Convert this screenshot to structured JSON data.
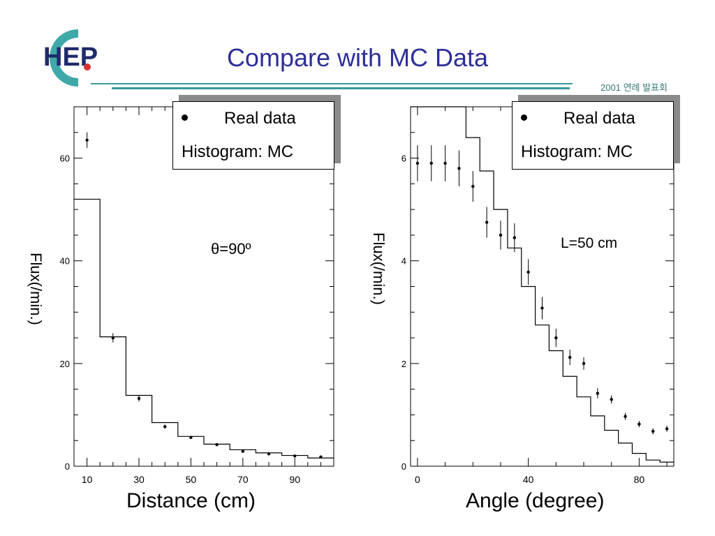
{
  "header": {
    "title": "Compare with  MC Data",
    "subtitle": "2001 연례 발표회",
    "logo_text": "HEP"
  },
  "legend": {
    "real_label": "Real data",
    "mc_label": "Histogram: MC"
  },
  "chart_data": [
    {
      "type": "scatter",
      "title": "",
      "xlabel": "Distance (cm)",
      "ylabel": "Flux(/min.)",
      "annotation": "θ=90º",
      "xlim": [
        5,
        105
      ],
      "ylim": [
        0,
        70
      ],
      "xticks": [
        10,
        30,
        50,
        70,
        90
      ],
      "yticks": [
        0,
        20,
        40,
        60
      ],
      "grid": false,
      "legend_position": "top-right",
      "series": [
        {
          "name": "Real data",
          "type": "points",
          "x": [
            10,
            20,
            30,
            40,
            50,
            60,
            70,
            80,
            90,
            100
          ],
          "y": [
            63.5,
            25.0,
            13.2,
            7.7,
            5.6,
            4.2,
            2.9,
            2.4,
            2.0,
            1.8
          ],
          "err": [
            1.5,
            0.9,
            0.6,
            0.4,
            0.3,
            0.3,
            0.2,
            0.2,
            0.2,
            0.2
          ]
        },
        {
          "name": "Histogram: MC",
          "type": "step",
          "edges": [
            5,
            15,
            25,
            35,
            45,
            55,
            65,
            75,
            85,
            95,
            105
          ],
          "values": [
            52,
            25.2,
            13.8,
            8.5,
            5.8,
            4.3,
            3.2,
            2.6,
            2.1,
            1.6
          ]
        }
      ]
    },
    {
      "type": "scatter",
      "title": "",
      "xlabel": "Angle (degree)",
      "ylabel": "Flux(/min.)",
      "annotation": "L=50 cm",
      "xlim": [
        -2.5,
        92.5
      ],
      "ylim": [
        0,
        7
      ],
      "xticks": [
        0,
        40,
        80
      ],
      "yticks": [
        0,
        2,
        4,
        6
      ],
      "grid": false,
      "legend_position": "top-right",
      "series": [
        {
          "name": "Real data",
          "type": "points",
          "x": [
            0,
            5,
            10,
            15,
            20,
            25,
            30,
            35,
            40,
            45,
            50,
            55,
            60,
            65,
            70,
            75,
            80,
            85,
            90
          ],
          "y": [
            5.9,
            5.9,
            5.9,
            5.8,
            5.45,
            4.75,
            4.5,
            4.45,
            3.78,
            3.08,
            2.5,
            2.12,
            2.0,
            1.42,
            1.3,
            0.97,
            0.82,
            0.68,
            0.73
          ],
          "err": [
            0.35,
            0.35,
            0.35,
            0.35,
            0.3,
            0.3,
            0.28,
            0.28,
            0.25,
            0.22,
            0.18,
            0.15,
            0.12,
            0.1,
            0.08,
            0.07,
            0.06,
            0.06,
            0.06
          ]
        },
        {
          "name": "Histogram: MC",
          "type": "step",
          "edges": [
            -2.5,
            2.5,
            7.5,
            12.5,
            17.5,
            22.5,
            27.5,
            32.5,
            37.5,
            42.5,
            47.5,
            52.5,
            57.5,
            62.5,
            67.5,
            72.5,
            77.5,
            82.5,
            87.5,
            92.5
          ],
          "values": [
            7.3,
            7.3,
            7.1,
            7.0,
            6.4,
            5.75,
            5.0,
            4.25,
            3.5,
            2.75,
            2.25,
            1.75,
            1.35,
            0.98,
            0.7,
            0.45,
            0.25,
            0.12,
            0.08
          ]
        }
      ]
    }
  ]
}
